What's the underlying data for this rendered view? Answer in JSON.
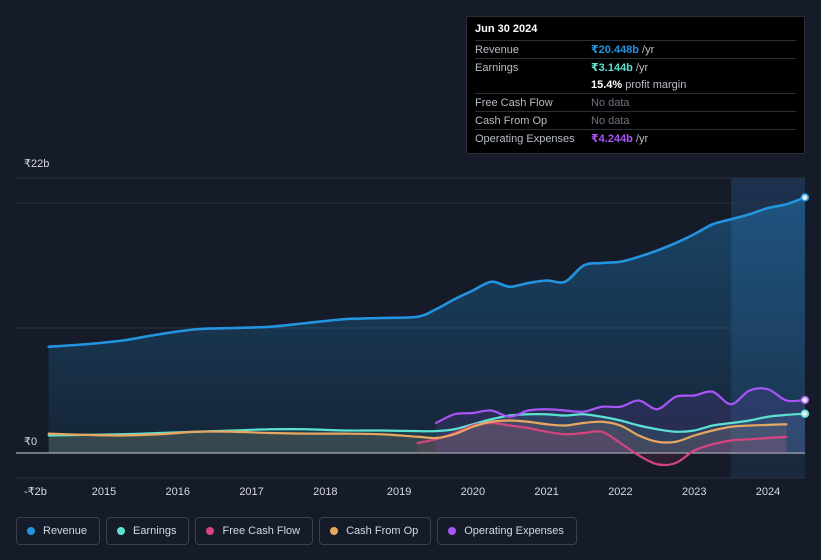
{
  "tooltip": {
    "date": "Jun 30 2024",
    "rows": [
      {
        "label": "Revenue",
        "value": "₹20.448b",
        "unit": "/yr",
        "color": "#2394df"
      },
      {
        "label": "Earnings",
        "value": "₹3.144b",
        "unit": "/yr",
        "color": "#5ce1d3"
      },
      {
        "label": "",
        "value": "15.4%",
        "unit": "profit margin",
        "color": "#ffffff"
      },
      {
        "label": "Free Cash Flow",
        "nodata": "No data"
      },
      {
        "label": "Cash From Op",
        "nodata": "No data"
      },
      {
        "label": "Operating Expenses",
        "value": "₹4.244b",
        "unit": "/yr",
        "color": "#a855f7"
      }
    ]
  },
  "legend": [
    {
      "label": "Revenue",
      "color": "#2394df"
    },
    {
      "label": "Earnings",
      "color": "#5ce1d3"
    },
    {
      "label": "Free Cash Flow",
      "color": "#d6457f"
    },
    {
      "label": "Cash From Op",
      "color": "#e8a761"
    },
    {
      "label": "Operating Expenses",
      "color": "#a855f7"
    }
  ],
  "chart_data": {
    "type": "line",
    "title": "",
    "xlabel": "",
    "ylabel": "",
    "units": "₹ billions",
    "ylim": [
      -2,
      22
    ],
    "y_tick_labels": [
      "₹22b",
      "₹0",
      "-₹2b"
    ],
    "y_ticks": [
      22,
      0,
      -2
    ],
    "x_tick_labels": [
      "2015",
      "2016",
      "2017",
      "2018",
      "2019",
      "2020",
      "2021",
      "2022",
      "2023",
      "2024"
    ],
    "x_ticks": [
      2015,
      2016,
      2017,
      2018,
      2019,
      2020,
      2021,
      2022,
      2023,
      2024
    ],
    "xlim": [
      2013.8,
      2024.5
    ],
    "highlight_start": 2023.5,
    "series": [
      {
        "name": "Revenue",
        "color": "#2394df",
        "fill": true,
        "x": [
          2014.25,
          2014.75,
          2015.25,
          2015.75,
          2016.25,
          2016.75,
          2017.25,
          2017.75,
          2018.25,
          2018.75,
          2019.25,
          2019.5,
          2019.75,
          2020.0,
          2020.25,
          2020.5,
          2020.75,
          2021.0,
          2021.25,
          2021.5,
          2021.75,
          2022.0,
          2022.25,
          2022.5,
          2022.75,
          2023.0,
          2023.25,
          2023.5,
          2023.75,
          2024.0,
          2024.25,
          2024.5
        ],
        "values": [
          8.5,
          8.7,
          9.0,
          9.5,
          9.9,
          10.0,
          10.1,
          10.4,
          10.7,
          10.8,
          10.9,
          11.5,
          12.3,
          13.0,
          13.7,
          13.3,
          13.6,
          13.8,
          13.7,
          15.0,
          15.2,
          15.3,
          15.7,
          16.2,
          16.8,
          17.5,
          18.3,
          18.7,
          19.1,
          19.6,
          19.9,
          20.448
        ]
      },
      {
        "name": "Earnings",
        "color": "#5ce1d3",
        "fill": true,
        "x": [
          2014.25,
          2014.75,
          2015.25,
          2015.75,
          2016.25,
          2016.75,
          2017.25,
          2017.75,
          2018.25,
          2018.75,
          2019.25,
          2019.5,
          2019.75,
          2020.0,
          2020.25,
          2020.5,
          2020.75,
          2021.0,
          2021.25,
          2021.5,
          2021.75,
          2022.0,
          2022.25,
          2022.5,
          2022.75,
          2023.0,
          2023.25,
          2023.5,
          2023.75,
          2024.0,
          2024.25,
          2024.5
        ],
        "values": [
          1.4,
          1.45,
          1.5,
          1.6,
          1.7,
          1.8,
          1.9,
          1.9,
          1.8,
          1.8,
          1.75,
          1.75,
          1.9,
          2.3,
          2.7,
          3.0,
          3.1,
          3.1,
          3.0,
          3.1,
          2.9,
          2.6,
          2.2,
          1.9,
          1.7,
          1.8,
          2.2,
          2.4,
          2.6,
          2.9,
          3.05,
          3.144
        ]
      },
      {
        "name": "Free Cash Flow",
        "color": "#d6457f",
        "fill": true,
        "x": [
          2019.25,
          2019.5,
          2019.75,
          2020.0,
          2020.25,
          2020.5,
          2020.75,
          2021.0,
          2021.25,
          2021.5,
          2021.75,
          2022.0,
          2022.25,
          2022.5,
          2022.75,
          2023.0,
          2023.25,
          2023.5,
          2023.75,
          2024.0,
          2024.25
        ],
        "values": [
          0.8,
          1.1,
          1.6,
          2.2,
          2.4,
          2.2,
          2.0,
          1.7,
          1.5,
          1.6,
          1.7,
          0.8,
          -0.2,
          -0.9,
          -0.8,
          0.2,
          0.7,
          1.0,
          1.1,
          1.2,
          1.3
        ]
      },
      {
        "name": "Cash From Op",
        "color": "#e8a761",
        "fill": true,
        "x": [
          2014.25,
          2014.75,
          2015.25,
          2015.75,
          2016.25,
          2016.75,
          2017.25,
          2017.75,
          2018.25,
          2018.75,
          2019.25,
          2019.5,
          2019.75,
          2020.0,
          2020.25,
          2020.5,
          2020.75,
          2021.0,
          2021.25,
          2021.5,
          2021.75,
          2022.0,
          2022.25,
          2022.5,
          2022.75,
          2023.0,
          2023.25,
          2023.5,
          2023.75,
          2024.0,
          2024.25
        ],
        "values": [
          1.55,
          1.45,
          1.4,
          1.5,
          1.7,
          1.7,
          1.6,
          1.55,
          1.55,
          1.5,
          1.3,
          1.2,
          1.5,
          2.1,
          2.5,
          2.6,
          2.5,
          2.3,
          2.2,
          2.4,
          2.5,
          2.2,
          1.4,
          0.9,
          0.9,
          1.4,
          1.8,
          2.1,
          2.2,
          2.25,
          2.3
        ]
      },
      {
        "name": "Operating Expenses",
        "color": "#a855f7",
        "fill": true,
        "x": [
          2019.5,
          2019.75,
          2020.0,
          2020.25,
          2020.5,
          2020.75,
          2021.0,
          2021.25,
          2021.5,
          2021.75,
          2022.0,
          2022.25,
          2022.5,
          2022.75,
          2023.0,
          2023.25,
          2023.5,
          2023.75,
          2024.0,
          2024.25,
          2024.5
        ],
        "values": [
          2.4,
          3.1,
          3.2,
          3.4,
          2.9,
          3.4,
          3.5,
          3.4,
          3.3,
          3.7,
          3.7,
          4.2,
          3.5,
          4.5,
          4.6,
          4.9,
          3.9,
          5.0,
          5.1,
          4.2,
          4.244
        ]
      }
    ]
  }
}
